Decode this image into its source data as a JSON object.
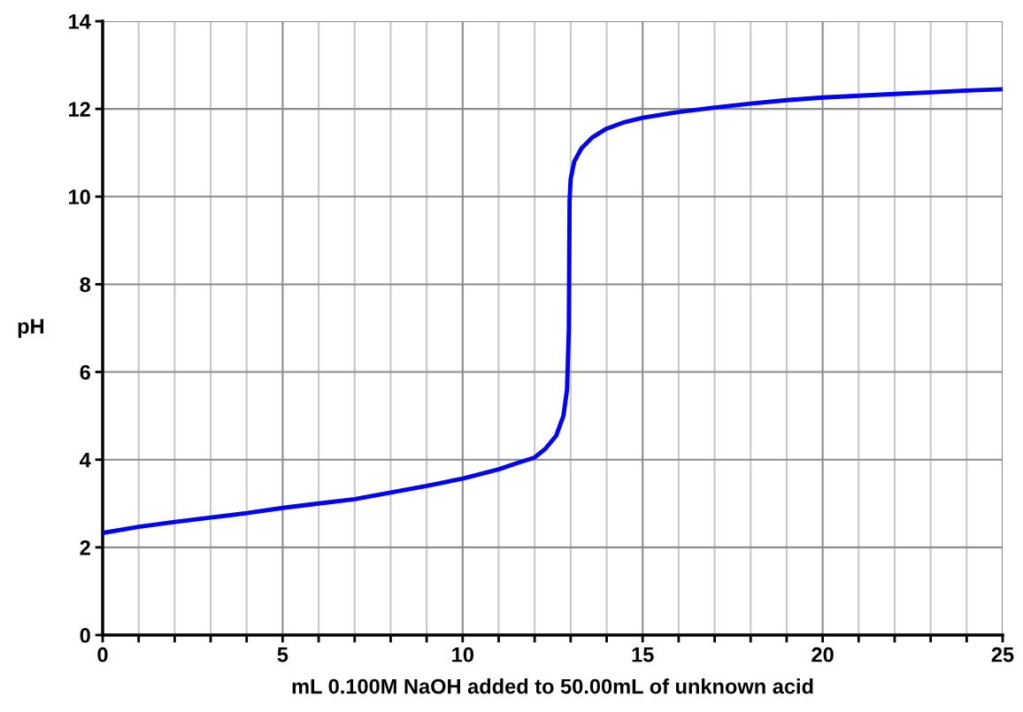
{
  "chart_data": {
    "type": "line",
    "xlabel": "mL 0.100M NaOH added to 50.00mL of unknown acid",
    "ylabel": "pH",
    "x": [
      0,
      1,
      2,
      3,
      4,
      5,
      6,
      7,
      8,
      9,
      10,
      11,
      11.5,
      12,
      12.3,
      12.6,
      12.8,
      12.9,
      12.95,
      12.97,
      13.0,
      13.1,
      13.3,
      13.6,
      14,
      14.5,
      15,
      16,
      17,
      18,
      19,
      20,
      21,
      22,
      23,
      24,
      25
    ],
    "series": [
      {
        "color": "#0000ff",
        "values": [
          2.33,
          2.47,
          2.58,
          2.68,
          2.78,
          2.9,
          3.0,
          3.1,
          3.25,
          3.4,
          3.57,
          3.78,
          3.92,
          4.05,
          4.25,
          4.55,
          5.0,
          5.6,
          7.0,
          9.9,
          10.4,
          10.8,
          11.1,
          11.35,
          11.55,
          11.7,
          11.8,
          11.93,
          12.03,
          12.12,
          12.2,
          12.26,
          12.3,
          12.34,
          12.38,
          12.42,
          12.45
        ]
      }
    ],
    "xlim": [
      0,
      25
    ],
    "xticks": [
      0,
      {
        "value": 1,
        "label": null
      },
      {
        "value": 2,
        "label": null
      },
      {
        "value": 3,
        "label": null
      },
      {
        "value": 4,
        "label": null
      },
      5,
      {
        "value": 6,
        "label": null
      },
      {
        "value": 7,
        "label": null
      },
      {
        "value": 8,
        "label": null
      },
      {
        "value": 9,
        "label": null
      },
      10,
      {
        "value": 11,
        "label": null
      },
      {
        "value": 12,
        "label": null
      },
      {
        "value": 13,
        "label": null
      },
      {
        "value": 14,
        "label": null
      },
      15,
      {
        "value": 16,
        "label": null
      },
      {
        "value": 17,
        "label": null
      },
      {
        "value": 18,
        "label": null
      },
      {
        "value": 19,
        "label": null
      },
      20,
      {
        "value": 21,
        "label": null
      },
      {
        "value": 22,
        "label": null
      },
      {
        "value": 23,
        "label": null
      },
      {
        "value": 24,
        "label": null
      },
      25
    ],
    "ylim": [
      0,
      14
    ],
    "yticks": [
      0,
      2,
      4,
      6,
      8,
      10,
      12,
      14
    ],
    "grid": true,
    "line_style": "solid",
    "marker": "none"
  }
}
